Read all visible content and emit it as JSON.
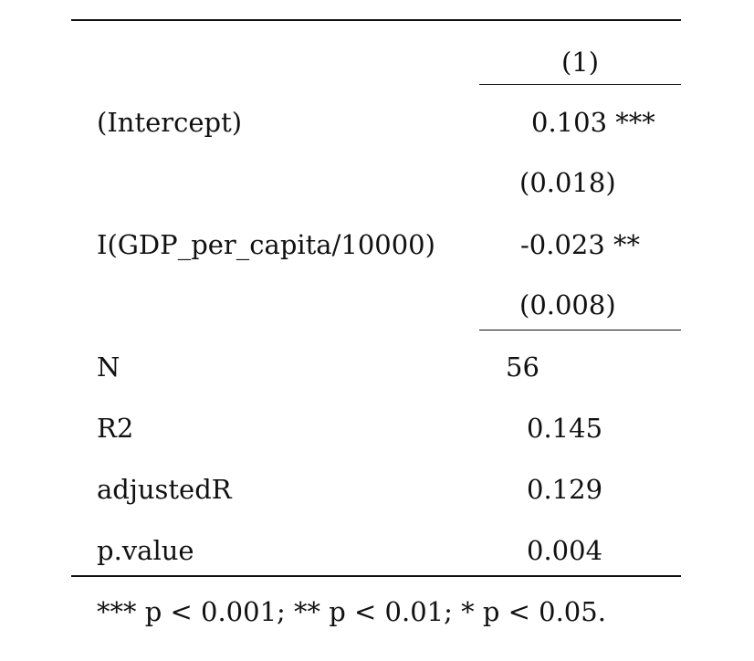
{
  "table": {
    "column_header": "(1)",
    "rows": [
      {
        "label": "(Intercept)",
        "estimate": "0.103",
        "stars": "***",
        "se": "(0.018)"
      },
      {
        "label": "I(GDP_per_capita/10000)",
        "estimate": "-0.023",
        "stars": "**",
        "se": "(0.008)"
      }
    ],
    "stats": [
      {
        "label": "N",
        "value": "56"
      },
      {
        "label": "R2",
        "value": "0.145"
      },
      {
        "label": "adjustedR",
        "value": "0.129"
      },
      {
        "label": "p.value",
        "value": "0.004"
      }
    ],
    "note": "*** p < 0.001; ** p < 0.01; * p < 0.05."
  }
}
